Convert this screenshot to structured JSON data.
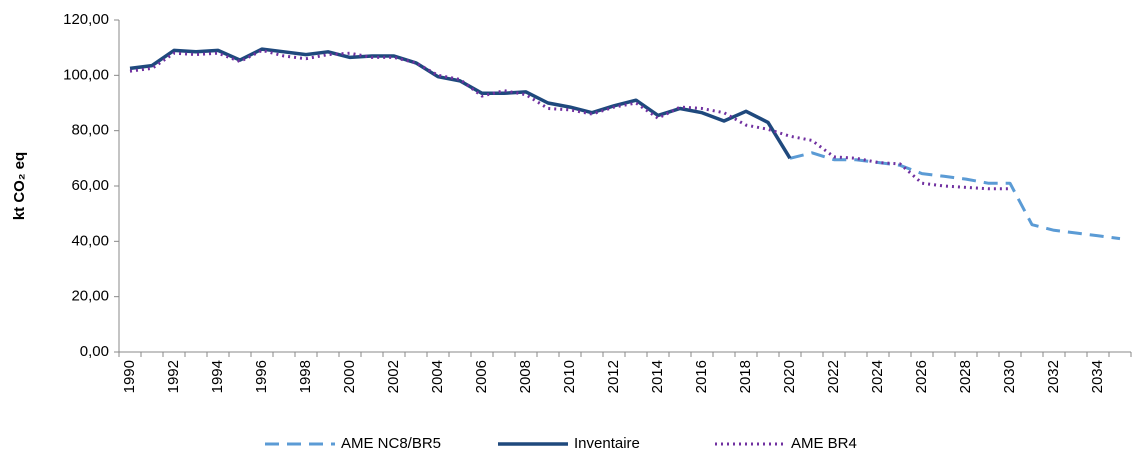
{
  "chart_data": {
    "type": "line",
    "y_label": "kt CO₂ eq",
    "categories": [
      "1990",
      null,
      "1992",
      null,
      "1994",
      null,
      "1996",
      null,
      "1998",
      null,
      "2000",
      null,
      "2002",
      null,
      "2004",
      null,
      "2006",
      null,
      "2008",
      null,
      "2010",
      null,
      "2012",
      null,
      "2014",
      null,
      "2016",
      null,
      "2018",
      null,
      "2020",
      null,
      "2022",
      null,
      "2024",
      null,
      "2026",
      null,
      "2028",
      null,
      "2030",
      null,
      "2032",
      null,
      "2034",
      null
    ],
    "series": [
      {
        "name": "AME NC8/BR5",
        "color": "#5b9bd5",
        "style": "dashed",
        "values": [
          null,
          null,
          null,
          null,
          null,
          null,
          null,
          null,
          null,
          null,
          null,
          null,
          null,
          null,
          null,
          null,
          null,
          null,
          null,
          null,
          null,
          null,
          null,
          null,
          null,
          null,
          null,
          null,
          null,
          null,
          70,
          72,
          69.5,
          69.5,
          68.5,
          67.5,
          64.5,
          63.5,
          62.5,
          61,
          61,
          46,
          44,
          43,
          42,
          41
        ]
      },
      {
        "name": "Inventaire",
        "color": "#1f497d",
        "style": "solid",
        "values": [
          102.5,
          103.5,
          109,
          108.5,
          109,
          105.5,
          109.5,
          108.5,
          107.5,
          108.5,
          106.5,
          107,
          107,
          104.5,
          99.5,
          98,
          93.5,
          93.5,
          94,
          90,
          88.5,
          86.5,
          89,
          91,
          85.5,
          88,
          86.5,
          83.5,
          87,
          83,
          70,
          null,
          null,
          null,
          null,
          null,
          null,
          null,
          null,
          null,
          null,
          null,
          null,
          null,
          null,
          null
        ]
      },
      {
        "name": "AME BR4",
        "color": "#7030a0",
        "style": "dotted",
        "values": [
          101.5,
          102.5,
          108,
          107.5,
          108,
          105,
          109,
          107,
          106,
          107.5,
          108,
          106.5,
          106.5,
          104.5,
          100,
          98.5,
          92.5,
          94.5,
          93,
          88,
          87.5,
          86,
          88.5,
          90,
          84.5,
          88.5,
          88,
          86.5,
          82,
          80.5,
          78,
          76.5,
          70.5,
          70,
          68.5,
          68,
          61,
          60,
          59.5,
          59,
          59,
          null,
          null,
          null,
          null,
          null
        ]
      }
    ],
    "ylim": [
      0,
      120
    ],
    "yticks": [
      {
        "value": 0,
        "label": "0,00"
      },
      {
        "value": 20,
        "label": "20,00"
      },
      {
        "value": 40,
        "label": "40,00"
      },
      {
        "value": 60,
        "label": "60,00"
      },
      {
        "value": 80,
        "label": "80,00"
      },
      {
        "value": 100,
        "label": "100,00"
      },
      {
        "value": 120,
        "label": "120,00"
      }
    ],
    "grid": false,
    "legend": "bottom"
  }
}
